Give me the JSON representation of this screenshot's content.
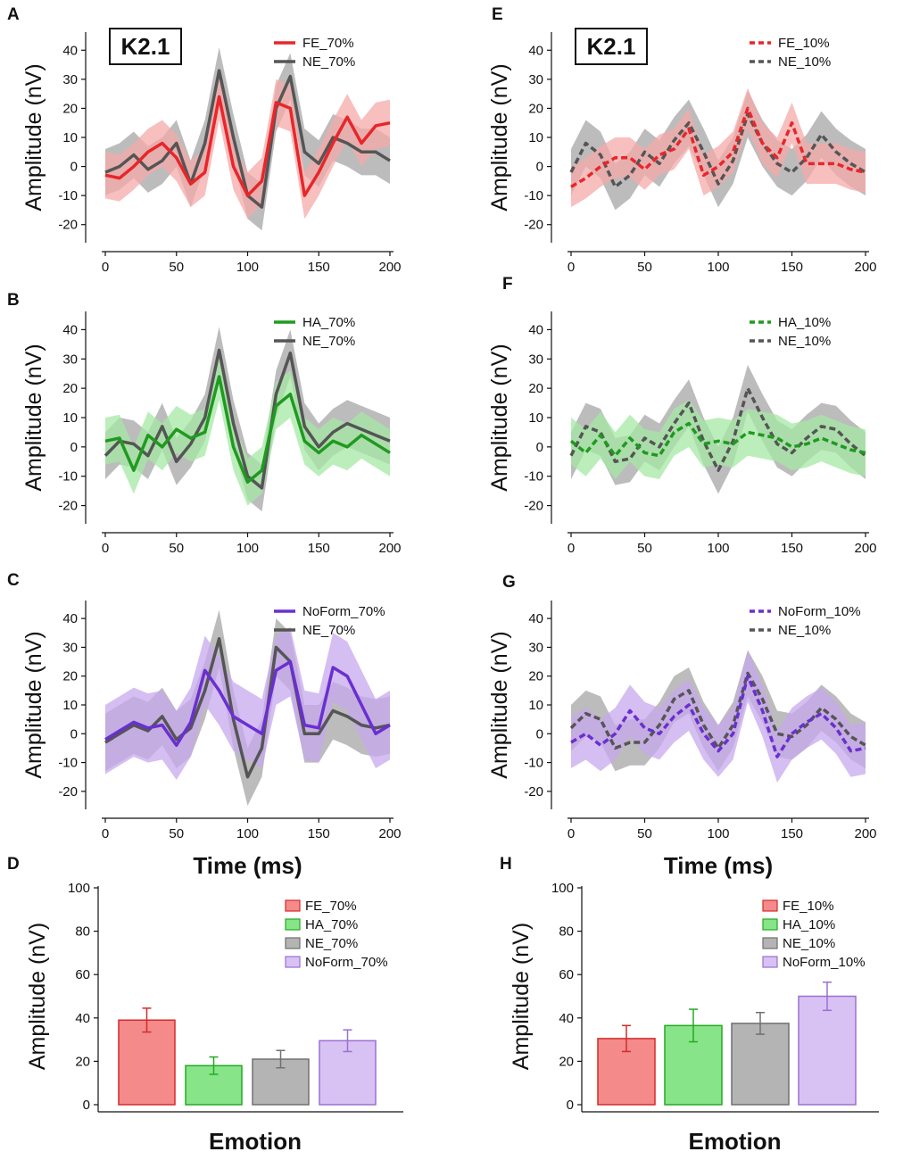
{
  "figure": {
    "panel_letters": {
      "A": "A",
      "B": "B",
      "C": "C",
      "D": "D",
      "E": "E",
      "F": "F",
      "G": "G",
      "H": "H"
    },
    "shared": {
      "k_label": "K2.1",
      "amplitude_label": "Amplitude (nV)",
      "time_label": "Time (ms)",
      "emotion_label": "Emotion"
    }
  },
  "colors": {
    "FE": "#e8262a",
    "FE_band": "#f6a9a9",
    "NE": "#555555",
    "NE_band": "#a6a6a6",
    "HA": "#1f9a1f",
    "HA_band": "#a6e8a6",
    "NoForm": "#6a2fd0",
    "NoForm_band": "#c7a8ee",
    "bar_FE": "#f48a8a",
    "bar_FE_edge": "#d42a2a",
    "bar_HA": "#88e488",
    "bar_HA_edge": "#22aa22",
    "bar_NE": "#b4b4b4",
    "bar_NE_edge": "#707070",
    "bar_NoForm": "#d8c2f4",
    "bar_NoForm_edge": "#9a70d0"
  },
  "chart_data": [
    {
      "id": "A",
      "type": "line",
      "xlim": [
        0,
        200
      ],
      "ylim": [
        -25,
        45
      ],
      "xticks": [
        0,
        50,
        100,
        150,
        200
      ],
      "yticks": [
        -20,
        -10,
        0,
        10,
        20,
        30,
        40
      ],
      "show_k_label": true,
      "show_xlabel": false,
      "series": [
        {
          "name": "FE_70%",
          "key": "FE",
          "dash": false,
          "band_width": 8,
          "x": [
            0,
            10,
            20,
            30,
            40,
            50,
            60,
            70,
            80,
            90,
            100,
            110,
            120,
            130,
            140,
            150,
            160,
            170,
            180,
            190,
            200
          ],
          "y": [
            -3,
            -4,
            0,
            5,
            8,
            3,
            -6,
            -2,
            24,
            0,
            -10,
            -5,
            22,
            20,
            -10,
            -2,
            8,
            17,
            8,
            14,
            15
          ]
        },
        {
          "name": "NE_70%",
          "key": "NE",
          "dash": false,
          "band_width": 8,
          "x": [
            0,
            10,
            20,
            30,
            40,
            50,
            60,
            70,
            80,
            90,
            100,
            110,
            120,
            130,
            140,
            150,
            160,
            170,
            180,
            190,
            200
          ],
          "y": [
            -2,
            0,
            4,
            -1,
            2,
            8,
            -6,
            8,
            33,
            10,
            -10,
            -14,
            20,
            31,
            5,
            1,
            10,
            8,
            5,
            5,
            2
          ]
        }
      ]
    },
    {
      "id": "E",
      "type": "line",
      "xlim": [
        0,
        200
      ],
      "ylim": [
        -25,
        45
      ],
      "xticks": [
        0,
        50,
        100,
        150,
        200
      ],
      "yticks": [
        -20,
        -10,
        0,
        10,
        20,
        30,
        40
      ],
      "show_k_label": true,
      "show_xlabel": false,
      "series": [
        {
          "name": "FE_10%",
          "key": "FE",
          "dash": true,
          "band_width": 7,
          "x": [
            0,
            10,
            20,
            30,
            40,
            50,
            60,
            70,
            80,
            90,
            100,
            110,
            120,
            130,
            140,
            150,
            160,
            170,
            180,
            190,
            200
          ],
          "y": [
            -7,
            -4,
            0,
            3,
            3,
            -1,
            4,
            6,
            13,
            -3,
            0,
            5,
            20,
            8,
            3,
            15,
            1,
            1,
            1,
            -1,
            -2
          ]
        },
        {
          "name": "NE_10%",
          "key": "NE",
          "dash": true,
          "band_width": 8,
          "x": [
            0,
            10,
            20,
            30,
            40,
            50,
            60,
            70,
            80,
            90,
            100,
            110,
            120,
            130,
            140,
            150,
            160,
            170,
            180,
            190,
            200
          ],
          "y": [
            -2,
            8,
            4,
            -7,
            -3,
            5,
            1,
            9,
            15,
            5,
            -6,
            2,
            18,
            8,
            1,
            -2,
            3,
            11,
            5,
            1,
            -2
          ]
        }
      ]
    },
    {
      "id": "B",
      "type": "line",
      "xlim": [
        0,
        200
      ],
      "ylim": [
        -25,
        45
      ],
      "xticks": [
        0,
        50,
        100,
        150,
        200
      ],
      "yticks": [
        -20,
        -10,
        0,
        10,
        20,
        30,
        40
      ],
      "show_k_label": false,
      "show_xlabel": false,
      "series": [
        {
          "name": "HA_70%",
          "key": "HA",
          "dash": false,
          "band_width": 8,
          "x": [
            0,
            10,
            20,
            30,
            40,
            50,
            60,
            70,
            80,
            90,
            100,
            110,
            120,
            130,
            140,
            150,
            160,
            170,
            180,
            190,
            200
          ],
          "y": [
            2,
            3,
            -8,
            4,
            0,
            6,
            3,
            5,
            24,
            0,
            -12,
            -8,
            14,
            18,
            2,
            -2,
            2,
            0,
            4,
            1,
            -2
          ]
        },
        {
          "name": "NE_70%",
          "key": "NE",
          "dash": false,
          "band_width": 8,
          "x": [
            0,
            10,
            20,
            30,
            40,
            50,
            60,
            70,
            80,
            90,
            100,
            110,
            120,
            130,
            140,
            150,
            160,
            170,
            180,
            190,
            200
          ],
          "y": [
            -3,
            2,
            1,
            -3,
            7,
            -5,
            1,
            10,
            33,
            8,
            -10,
            -14,
            18,
            32,
            7,
            0,
            5,
            8,
            6,
            4,
            2
          ]
        }
      ]
    },
    {
      "id": "F",
      "type": "line",
      "xlim": [
        0,
        200
      ],
      "ylim": [
        -25,
        45
      ],
      "xticks": [
        0,
        50,
        100,
        150,
        200
      ],
      "yticks": [
        -20,
        -10,
        0,
        10,
        20,
        30,
        40
      ],
      "show_k_label": false,
      "show_xlabel": false,
      "series": [
        {
          "name": "HA_10%",
          "key": "HA",
          "dash": true,
          "band_width": 8,
          "x": [
            0,
            10,
            20,
            30,
            40,
            50,
            60,
            70,
            80,
            90,
            100,
            110,
            120,
            130,
            140,
            150,
            160,
            170,
            180,
            190,
            200
          ],
          "y": [
            2,
            -2,
            4,
            -3,
            3,
            -2,
            -3,
            5,
            8,
            1,
            2,
            1,
            5,
            4,
            3,
            0,
            1,
            3,
            1,
            -1,
            -2
          ]
        },
        {
          "name": "NE_10%",
          "key": "NE",
          "dash": true,
          "band_width": 8,
          "x": [
            0,
            10,
            20,
            30,
            40,
            50,
            60,
            70,
            80,
            90,
            100,
            110,
            120,
            130,
            140,
            150,
            160,
            170,
            180,
            190,
            200
          ],
          "y": [
            -3,
            7,
            5,
            -5,
            -4,
            3,
            0,
            8,
            15,
            2,
            -8,
            2,
            20,
            10,
            1,
            -2,
            3,
            7,
            6,
            1,
            -3
          ]
        }
      ]
    },
    {
      "id": "C",
      "type": "line",
      "xlim": [
        0,
        200
      ],
      "ylim": [
        -25,
        45
      ],
      "xticks": [
        0,
        50,
        100,
        150,
        200
      ],
      "yticks": [
        -20,
        -10,
        0,
        10,
        20,
        30,
        40
      ],
      "show_k_label": false,
      "show_xlabel": true,
      "series": [
        {
          "name": "NoForm_70%",
          "key": "NoForm",
          "dash": false,
          "band_width": 12,
          "x": [
            0,
            10,
            20,
            30,
            40,
            50,
            60,
            70,
            80,
            90,
            100,
            110,
            120,
            130,
            140,
            150,
            160,
            170,
            180,
            190,
            200
          ],
          "y": [
            -2,
            1,
            4,
            2,
            3,
            -4,
            4,
            22,
            15,
            6,
            3,
            0,
            22,
            25,
            3,
            2,
            23,
            20,
            10,
            0,
            3
          ]
        },
        {
          "name": "NE_70%",
          "key": "NE",
          "dash": false,
          "band_width": 10,
          "x": [
            0,
            10,
            20,
            30,
            40,
            50,
            60,
            70,
            80,
            90,
            100,
            110,
            120,
            130,
            140,
            150,
            160,
            170,
            180,
            190,
            200
          ],
          "y": [
            -3,
            0,
            3,
            1,
            6,
            -2,
            2,
            15,
            33,
            5,
            -15,
            -5,
            30,
            25,
            0,
            0,
            8,
            6,
            3,
            2,
            3
          ]
        }
      ]
    },
    {
      "id": "G",
      "type": "line",
      "xlim": [
        0,
        200
      ],
      "ylim": [
        -25,
        45
      ],
      "xticks": [
        0,
        50,
        100,
        150,
        200
      ],
      "yticks": [
        -20,
        -10,
        0,
        10,
        20,
        30,
        40
      ],
      "show_k_label": false,
      "show_xlabel": true,
      "series": [
        {
          "name": "NoForm_10%",
          "key": "NoForm",
          "dash": true,
          "band_width": 9,
          "x": [
            0,
            10,
            20,
            30,
            40,
            50,
            60,
            70,
            80,
            90,
            100,
            110,
            120,
            130,
            140,
            150,
            160,
            170,
            180,
            190,
            200
          ],
          "y": [
            -3,
            0,
            -4,
            0,
            8,
            2,
            0,
            6,
            10,
            0,
            -6,
            0,
            20,
            8,
            -8,
            0,
            4,
            7,
            2,
            -6,
            -5
          ]
        },
        {
          "name": "NE_10%",
          "key": "NE",
          "dash": true,
          "band_width": 8,
          "x": [
            0,
            10,
            20,
            30,
            40,
            50,
            60,
            70,
            80,
            90,
            100,
            110,
            120,
            130,
            140,
            150,
            160,
            170,
            180,
            190,
            200
          ],
          "y": [
            2,
            7,
            5,
            -5,
            -3,
            -3,
            3,
            12,
            15,
            3,
            -5,
            3,
            21,
            12,
            0,
            -1,
            3,
            9,
            5,
            -1,
            -4
          ]
        }
      ]
    },
    {
      "id": "D",
      "type": "bar",
      "ylim": [
        0,
        100
      ],
      "yticks": [
        0,
        20,
        40,
        60,
        80,
        100
      ],
      "categories": [
        "FE_70%",
        "HA_70%",
        "NE_70%",
        "NoForm_70%"
      ],
      "keys": [
        "FE",
        "HA",
        "NE",
        "NoForm"
      ],
      "values": [
        39,
        18,
        21,
        29.5
      ],
      "errors": [
        5.5,
        4,
        4,
        5
      ]
    },
    {
      "id": "H",
      "type": "bar",
      "ylim": [
        0,
        100
      ],
      "yticks": [
        0,
        20,
        40,
        60,
        80,
        100
      ],
      "categories": [
        "FE_10%",
        "HA_10%",
        "NE_10%",
        "NoForm_10%"
      ],
      "keys": [
        "FE",
        "HA",
        "NE",
        "NoForm"
      ],
      "values": [
        30.5,
        36.5,
        37.5,
        50
      ],
      "errors": [
        6,
        7.5,
        5,
        6.5
      ]
    }
  ]
}
